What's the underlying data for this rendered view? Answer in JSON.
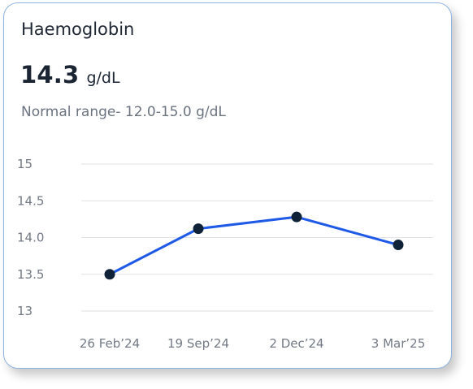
{
  "card": {
    "title": "Haemoglobin",
    "value": "14.3",
    "unit": "g/dL",
    "normal_range": "Normal range- 12.0-15.0 g/dL"
  },
  "colors": {
    "line": "#1f5ae6",
    "point": "#0f2238",
    "grid": "#dfe2e6",
    "border": "#8fb3e0"
  },
  "chart_data": {
    "type": "line",
    "categories": [
      "26 Feb’24",
      "19 Sep’24",
      "2 Dec’24",
      "3 Mar’25"
    ],
    "values": [
      13.5,
      14.12,
      14.28,
      13.9
    ],
    "y_ticks": [
      "15",
      "14.5",
      "14.0",
      "13.5",
      "13"
    ],
    "ylim": [
      13,
      15
    ],
    "grid": true,
    "title": "",
    "xlabel": "",
    "ylabel": ""
  }
}
